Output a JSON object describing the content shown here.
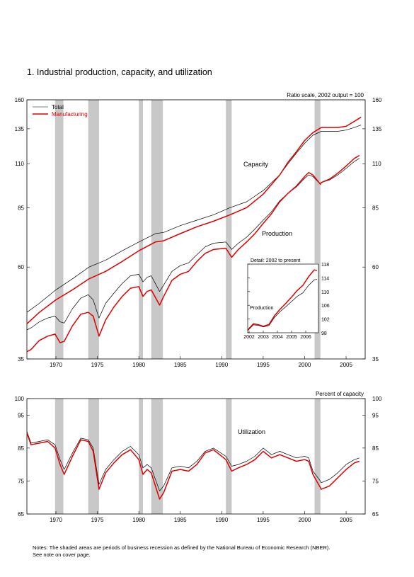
{
  "figure": {
    "title": "1.  Industrial production, capacity, and utilization",
    "notes": [
      "Notes: The shaded areas are periods of business recession as defined by the National Bureau of Economic Research (NBER).",
      "See note on cover page."
    ],
    "colors": {
      "total": "#000000",
      "manufacturing": "#e00000",
      "recession": "#c8c8c8"
    }
  },
  "chart_data": [
    {
      "type": "line",
      "subtitle": "Ratio scale, 2002 output = 100",
      "log_scale": true,
      "xlim": [
        1966.5,
        2007.3
      ],
      "ylim": [
        35,
        160
      ],
      "y_ticks": [
        35,
        60,
        85,
        110,
        135,
        160
      ],
      "y_tick_labels": [
        "35",
        "60",
        "85",
        "110",
        "135",
        "160"
      ],
      "x_ticks": [
        1970,
        1975,
        1980,
        1985,
        1990,
        1995,
        2000,
        2005
      ],
      "x_tick_labels": [
        "1970",
        "1975",
        "1980",
        "1985",
        "1990",
        "1995",
        "2000",
        "2005"
      ],
      "legend": {
        "placement": "top-left",
        "entries": [
          "Total",
          "Manufacturing"
        ]
      },
      "annotations": [
        "Capacity",
        "Production"
      ],
      "recessions": [
        [
          1969.9,
          1970.9
        ],
        [
          1973.9,
          1975.2
        ],
        [
          1980.0,
          1980.5
        ],
        [
          1981.5,
          1982.9
        ],
        [
          1990.5,
          1991.2
        ],
        [
          2001.2,
          2001.9
        ]
      ],
      "series": [
        {
          "name": "Total",
          "group": "Capacity",
          "x": [
            1966.5,
            1968,
            1970,
            1972,
            1974,
            1976,
            1978,
            1980,
            1982,
            1983,
            1985,
            1987,
            1989,
            1991,
            1993,
            1995,
            1997,
            1998,
            1999,
            2000,
            2001,
            2002,
            2003,
            2004,
            2005,
            2006,
            2006.8
          ],
          "y": [
            46,
            48.5,
            52.5,
            56,
            60,
            62.5,
            66,
            69.5,
            73,
            73.5,
            76.5,
            79,
            81.5,
            85,
            88,
            94,
            103,
            110,
            117,
            124,
            130,
            133,
            133,
            133,
            134,
            136,
            138
          ]
        },
        {
          "name": "Manufacturing",
          "group": "Capacity",
          "x": [
            1966.5,
            1968,
            1970,
            1972,
            1974,
            1976,
            1978,
            1980,
            1982,
            1983,
            1985,
            1987,
            1989,
            1991,
            1993,
            1995,
            1997,
            1998,
            1999,
            2000,
            2001,
            2002,
            2003,
            2004,
            2005,
            2006,
            2006.8
          ],
          "y": [
            43,
            46,
            49.5,
            52.5,
            56,
            58.5,
            62,
            66,
            69.5,
            70,
            73,
            76,
            78.5,
            81.5,
            85,
            92,
            103,
            111,
            118,
            126,
            132,
            136,
            136,
            136,
            137,
            141,
            144.5
          ]
        },
        {
          "name": "Total",
          "group": "Production",
          "x": [
            1966.5,
            1967,
            1968,
            1969,
            1969.9,
            1970.5,
            1971,
            1972,
            1973,
            1973.9,
            1974.5,
            1975.2,
            1976,
            1977,
            1978,
            1979,
            1980.0,
            1980.5,
            1981,
            1981.5,
            1982.5,
            1983,
            1984,
            1985,
            1986,
            1987,
            1988,
            1989,
            1990.5,
            1991.2,
            1992,
            1993,
            1994,
            1995,
            1996,
            1997,
            1998,
            1999,
            2000,
            2000.5,
            2001,
            2001.9,
            2002,
            2003,
            2004,
            2005,
            2006,
            2006.6
          ],
          "y": [
            41.5,
            42,
            43.5,
            44.5,
            45,
            43.5,
            43.2,
            47,
            50,
            51,
            49.5,
            44.5,
            48.5,
            51.5,
            54.5,
            57,
            57.5,
            55,
            56.5,
            57,
            52,
            54,
            58.5,
            60.5,
            61.5,
            64.5,
            67.5,
            69,
            69.5,
            66.5,
            69,
            71.5,
            75,
            79,
            83,
            88.5,
            92.5,
            96,
            101,
            103,
            102,
            97.5,
            98.5,
            100,
            103,
            107,
            111.5,
            113.5
          ]
        },
        {
          "name": "Manufacturing",
          "group": "Production",
          "x": [
            1966.5,
            1967,
            1968,
            1969,
            1969.9,
            1970.5,
            1971,
            1972,
            1973,
            1973.9,
            1974.5,
            1975.2,
            1976,
            1977,
            1978,
            1979,
            1980.0,
            1980.5,
            1981,
            1981.5,
            1982.5,
            1983,
            1984,
            1985,
            1986,
            1987,
            1988,
            1989,
            1990.5,
            1991.2,
            1992,
            1993,
            1994,
            1995,
            1996,
            1997,
            1998,
            1999,
            2000,
            2000.5,
            2001,
            2001.9,
            2002,
            2003,
            2004,
            2005,
            2006,
            2006.6
          ],
          "y": [
            36.5,
            37,
            39,
            40,
            40.5,
            38.5,
            38.8,
            42.5,
            45.5,
            46,
            45,
            40,
            44,
            47.5,
            50.5,
            53,
            53.5,
            50.5,
            52,
            52.5,
            48,
            50.5,
            55.5,
            57.5,
            58.5,
            62,
            65,
            66.5,
            67,
            63.5,
            66.5,
            69.5,
            73,
            77.5,
            82,
            88,
            92.5,
            96.5,
            102,
            104.5,
            103,
            97.5,
            98.5,
            100.5,
            104,
            108.5,
            113.5,
            115.5
          ]
        }
      ]
    },
    {
      "type": "line",
      "title": "Detail: 2002 to present",
      "xlim": [
        2001.9,
        2006.9
      ],
      "ylim": [
        98,
        118
      ],
      "y_ticks": [
        98,
        102,
        106,
        110,
        114,
        118
      ],
      "y_tick_labels": [
        "98",
        "102",
        "106",
        "110",
        "114",
        "118"
      ],
      "x_ticks": [
        2002,
        2003,
        2004,
        2005,
        2006
      ],
      "x_tick_labels": [
        "2002",
        "2003",
        "2004",
        "2005",
        "2006"
      ],
      "annotations": [
        "Production"
      ],
      "series": [
        {
          "name": "Total",
          "x": [
            2001.9,
            2002.3,
            2002.7,
            2003.0,
            2003.4,
            2003.8,
            2004.2,
            2004.6,
            2005.0,
            2005.4,
            2005.8,
            2006.2,
            2006.6,
            2006.8
          ],
          "y": [
            98.6,
            100.3,
            100.1,
            99.7,
            100.1,
            102.5,
            104.2,
            105.6,
            107.1,
            108.6,
            109.6,
            111.8,
            113.4,
            113.6
          ]
        },
        {
          "name": "Manufacturing",
          "x": [
            2001.9,
            2002.3,
            2002.7,
            2003.0,
            2003.4,
            2003.8,
            2004.2,
            2004.6,
            2005.0,
            2005.4,
            2005.8,
            2006.2,
            2006.6,
            2006.8
          ],
          "y": [
            98.8,
            100.6,
            100.3,
            99.9,
            100.4,
            103.0,
            104.9,
            106.6,
            108.4,
            110.3,
            111.8,
            114.3,
            116.3,
            116.1
          ]
        }
      ]
    },
    {
      "type": "line",
      "subtitle": "Percent of capacity",
      "annotations": [
        "Utilization"
      ],
      "xlim": [
        1966.5,
        2007.3
      ],
      "ylim": [
        65,
        100
      ],
      "y_ticks": [
        65,
        75,
        85,
        95,
        100
      ],
      "y_tick_labels": [
        "65",
        "75",
        "85",
        "95",
        "100"
      ],
      "x_ticks": [
        1970,
        1975,
        1980,
        1985,
        1990,
        1995,
        2000,
        2005
      ],
      "x_tick_labels": [
        "1970",
        "1975",
        "1980",
        "1985",
        "1990",
        "1995",
        "2000",
        "2005"
      ],
      "recessions": [
        [
          1969.9,
          1970.9
        ],
        [
          1973.9,
          1975.2
        ],
        [
          1980.0,
          1980.5
        ],
        [
          1981.5,
          1982.9
        ],
        [
          1990.5,
          1991.2
        ],
        [
          2001.2,
          2001.9
        ]
      ],
      "series": [
        {
          "name": "Total",
          "x": [
            1966.5,
            1967,
            1968,
            1969,
            1969.9,
            1970.5,
            1971,
            1972,
            1973,
            1973.9,
            1974.5,
            1975.2,
            1976,
            1977,
            1978,
            1979,
            1980.0,
            1980.5,
            1981,
            1981.5,
            1982.5,
            1983,
            1984,
            1985,
            1986,
            1987,
            1988,
            1989,
            1990.5,
            1991.2,
            1992,
            1993,
            1994,
            1995,
            1996,
            1997,
            1998,
            1999,
            2000,
            2000.5,
            2001,
            2001.9,
            2002,
            2003,
            2004,
            2005,
            2006,
            2006.6
          ],
          "y": [
            90,
            86.5,
            87,
            87.5,
            86,
            81.5,
            78.5,
            83.5,
            88,
            87.5,
            85,
            74,
            78.5,
            81.5,
            84,
            85.5,
            83,
            79,
            80,
            79,
            72,
            73.5,
            79,
            79.5,
            79,
            81,
            84,
            85,
            82.5,
            79.5,
            80,
            81,
            82.5,
            85,
            83,
            84,
            83,
            82,
            82.5,
            82,
            78,
            75,
            74.5,
            75.5,
            77.5,
            80,
            81.5,
            82
          ]
        },
        {
          "name": "Manufacturing",
          "x": [
            1966.5,
            1967,
            1968,
            1969,
            1969.9,
            1970.5,
            1971,
            1972,
            1973,
            1973.9,
            1974.5,
            1975.2,
            1976,
            1977,
            1978,
            1979,
            1980.0,
            1980.5,
            1981,
            1981.5,
            1982.5,
            1983,
            1984,
            1985,
            1986,
            1987,
            1988,
            1989,
            1990.5,
            1991.2,
            1992,
            1993,
            1994,
            1995,
            1996,
            1997,
            1998,
            1999,
            2000,
            2000.5,
            2001,
            2001.9,
            2002,
            2003,
            2004,
            2005,
            2006,
            2006.6
          ],
          "y": [
            89.5,
            86,
            86.5,
            87,
            85,
            80,
            77,
            82.5,
            87.5,
            87,
            84,
            72.5,
            77.5,
            80.5,
            83,
            84.5,
            81.5,
            77,
            78.5,
            77.5,
            69.5,
            71.5,
            78,
            78.5,
            78,
            80,
            83.5,
            84.5,
            81.5,
            78,
            79,
            80,
            81.5,
            84,
            82,
            83,
            82,
            81,
            81.5,
            81,
            77,
            73,
            72.5,
            73.5,
            76,
            78.5,
            80.5,
            81
          ]
        }
      ]
    }
  ]
}
